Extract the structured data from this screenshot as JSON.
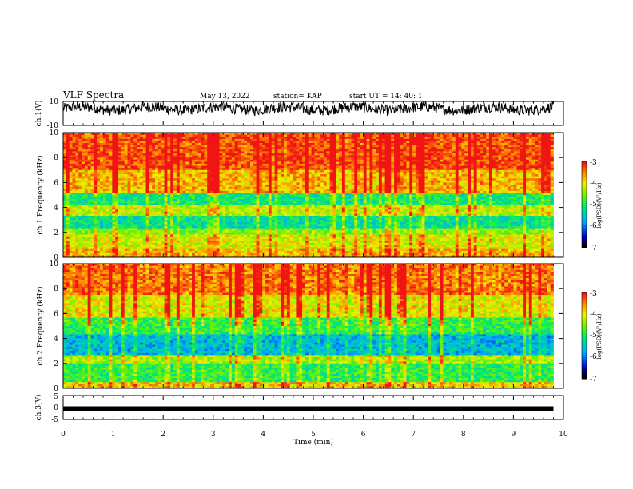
{
  "header": {
    "title": "VLF Spectra",
    "date": "May 13, 2022",
    "station": "station= KAP",
    "start": "start  UT  =   14: 40: 1"
  },
  "chart_data": [
    {
      "type": "line",
      "name": "ch1-waveform",
      "ylabel": "ch.1(V)",
      "ylim": [
        -10,
        10
      ],
      "xlim": [
        0,
        10
      ],
      "yticks": [
        "10",
        "-10"
      ],
      "trace": {
        "x_max": 9.8,
        "mean": 4,
        "spread": 5
      }
    },
    {
      "type": "heatmap",
      "name": "ch1-spectrogram",
      "ylabel": "ch.1 Frequency (kHz)",
      "ylim": [
        0,
        10
      ],
      "xlim": [
        0,
        9.8
      ],
      "yticks": [
        "10",
        "8",
        "6",
        "4",
        "2",
        "0"
      ],
      "colorbar": {
        "label": "log(PSD)(V²/Hz)",
        "range": [
          -7,
          -3
        ],
        "ticks": [
          "-3",
          "-4",
          "-5",
          "-6",
          "-7"
        ]
      },
      "bands": [
        {
          "f": [
            0,
            0.6
          ],
          "v": -3.8
        },
        {
          "f": [
            0.6,
            1.8
          ],
          "v": -4.2
        },
        {
          "f": [
            1.8,
            2.4
          ],
          "v": -4.6
        },
        {
          "f": [
            2.4,
            3.4
          ],
          "v": -5.3
        },
        {
          "f": [
            3.4,
            4.2
          ],
          "v": -4.3
        },
        {
          "f": [
            4.2,
            5.2
          ],
          "v": -5.2
        },
        {
          "f": [
            5.2,
            7.0
          ],
          "v": -3.9
        },
        {
          "f": [
            7.0,
            10
          ],
          "v": -3.4
        }
      ]
    },
    {
      "type": "heatmap",
      "name": "ch2-spectrogram",
      "ylabel": "ch.2 Frequency (kHz)",
      "ylim": [
        0,
        10
      ],
      "xlim": [
        0,
        9.8
      ],
      "yticks": [
        "10",
        "8",
        "6",
        "4",
        "2",
        "0"
      ],
      "colorbar": {
        "label": "log(PSD)(V²/Hz)",
        "range": [
          -7,
          -3
        ],
        "ticks": [
          "-3",
          "-4",
          "-5",
          "-6",
          "-7"
        ]
      },
      "bands": [
        {
          "f": [
            0,
            0.5
          ],
          "v": -3.9
        },
        {
          "f": [
            0.5,
            2.0
          ],
          "v": -5.0
        },
        {
          "f": [
            2.0,
            2.6
          ],
          "v": -4.4
        },
        {
          "f": [
            2.6,
            4.4
          ],
          "v": -5.7
        },
        {
          "f": [
            4.4,
            5.6
          ],
          "v": -5.0
        },
        {
          "f": [
            5.6,
            7.5
          ],
          "v": -4.2
        },
        {
          "f": [
            7.5,
            10
          ],
          "v": -3.6
        }
      ]
    },
    {
      "type": "line",
      "name": "ch3-waveform",
      "ylabel": "ch.3(V)",
      "ylim": [
        -5,
        5
      ],
      "xlim": [
        0,
        10
      ],
      "yticks": [
        "5",
        "0",
        "-5"
      ],
      "trace": {
        "x_max": 9.8,
        "mean": -0.5,
        "spread": 0.5
      }
    }
  ],
  "xaxis": {
    "label": "Time (min)",
    "ticks": [
      "0",
      "1",
      "2",
      "3",
      "4",
      "5",
      "6",
      "7",
      "8",
      "9",
      "10"
    ]
  }
}
